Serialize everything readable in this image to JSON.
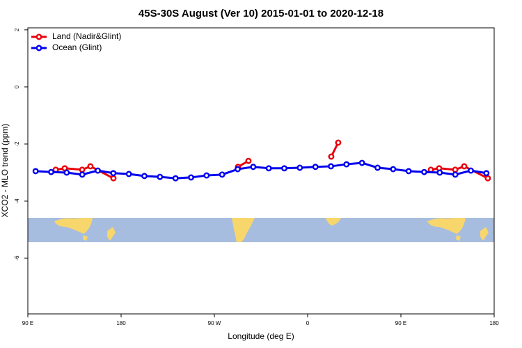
{
  "chart_data": {
    "type": "line",
    "title": "45S-30S August (Ver 10)   2015-01-01 to 2020-12-18",
    "x_label": "Longitude (deg E)",
    "y_label": "XCO2 - MLO trend (ppm)",
    "xlim": [
      90,
      540
    ],
    "xticks": [
      {
        "value": 90,
        "label": "90 E"
      },
      {
        "value": 180,
        "label": "180"
      },
      {
        "value": 270,
        "label": "90 W"
      },
      {
        "value": 360,
        "label": "0"
      },
      {
        "value": 450,
        "label": "90 E"
      },
      {
        "value": 540,
        "label": "180"
      }
    ],
    "ylim": [
      -7.95,
      2.07
    ],
    "yticks": [
      2,
      0,
      -2,
      -4,
      -6
    ],
    "legend": "top-left",
    "series": [
      {
        "name": "Land (Nadir&Glint)",
        "color": "#e8000b",
        "x": [
          116.9,
          125.6,
          142.4,
          150.4,
          172.6,
          null,
          292.8,
          302.9,
          null,
          382.8,
          389.5,
          null,
          478.9,
          486.9,
          502.4,
          511.1,
          533.9
        ],
        "values": [
          -2.9,
          -2.85,
          -2.9,
          -2.78,
          -3.2,
          null,
          -2.8,
          -2.59,
          null,
          -2.44,
          -1.95,
          null,
          -2.9,
          -2.85,
          -2.9,
          -2.78,
          -3.2
        ]
      },
      {
        "name": "Ocean (Glint)",
        "color": "#0000ee",
        "x": [
          97.5,
          112.5,
          127.5,
          142.5,
          157.5,
          172.5,
          187.5,
          202.5,
          217.5,
          232.5,
          247.5,
          262.5,
          277.5,
          292.5,
          307.5,
          322.5,
          337.5,
          352.5,
          367.5,
          382.5,
          397.5,
          412.5,
          427.5,
          442.5,
          457.5,
          472.5,
          487.5,
          502.5,
          517.5,
          532.5
        ],
        "values": [
          -2.95,
          -2.98,
          -3.0,
          -3.07,
          -2.93,
          -3.02,
          -3.05,
          -3.12,
          -3.15,
          -3.2,
          -3.17,
          -3.1,
          -3.07,
          -2.88,
          -2.8,
          -2.85,
          -2.85,
          -2.83,
          -2.8,
          -2.78,
          -2.71,
          -2.66,
          -2.83,
          -2.88,
          -2.95,
          -2.98,
          -3.0,
          -3.07,
          -2.93,
          -3.02
        ]
      }
    ]
  }
}
